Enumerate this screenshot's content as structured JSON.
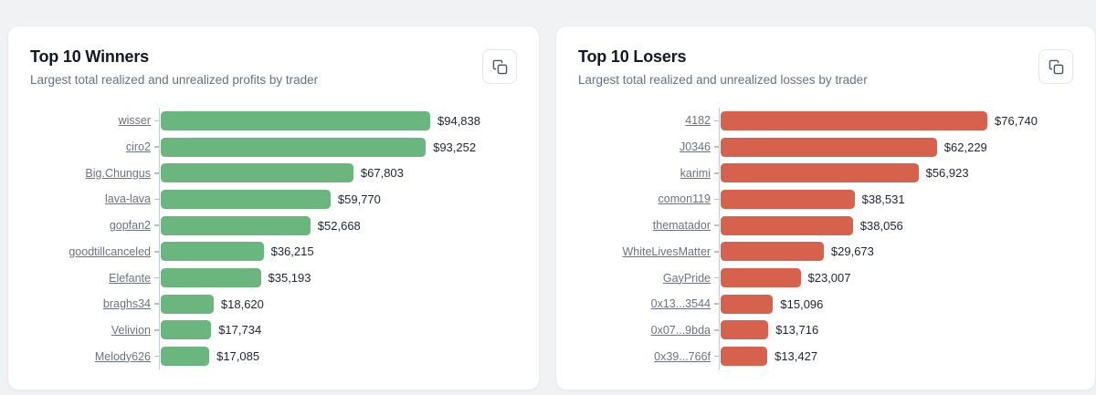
{
  "page": {
    "background_color": "#f1f2f4"
  },
  "cards": [
    {
      "title": "Top 10 Winners",
      "subtitle": "Largest total realized and unrealized profits by trader",
      "copy_icon": "copy-icon"
    },
    {
      "title": "Top 10 Losers",
      "subtitle": "Largest total realized and unrealized losses by trader",
      "copy_icon": "copy-icon"
    }
  ],
  "chart_data": [
    {
      "type": "bar",
      "orientation": "horizontal",
      "title": "Top 10 Winners",
      "subtitle": "Largest total realized and unrealized profits by trader",
      "categories": [
        "wisser",
        "ciro2",
        "Big.Chungus",
        "lava-lava",
        "gopfan2",
        "goodtillcanceled",
        "Elefante",
        "braghs34",
        "Velivion",
        "Melody626"
      ],
      "values": [
        94838,
        93252,
        67803,
        59770,
        52668,
        36215,
        35193,
        18620,
        17734,
        17085
      ],
      "value_labels": [
        "$94,838",
        "$93,252",
        "$67,803",
        "$59,770",
        "$52,668",
        "$36,215",
        "$35,193",
        "$18,620",
        "$17,734",
        "$17,085"
      ],
      "bar_color": "#6ab67e",
      "xlim": [
        0,
        94838
      ],
      "grid": false,
      "legend": "none"
    },
    {
      "type": "bar",
      "orientation": "horizontal",
      "title": "Top 10 Losers",
      "subtitle": "Largest total realized and unrealized losses by trader",
      "categories": [
        "4182",
        "J0346",
        "karimi",
        "comon119",
        "thematador",
        "WhiteLivesMatter",
        "GayPride",
        "0x13...3544",
        "0x07...9bda",
        "0x39...766f"
      ],
      "values": [
        76740,
        62229,
        56923,
        38531,
        38056,
        29673,
        23007,
        15096,
        13716,
        13427
      ],
      "value_labels": [
        "$76,740",
        "$62,229",
        "$56,923",
        "$38,531",
        "$38,056",
        "$29,673",
        "$23,007",
        "$15,096",
        "$13,716",
        "$13,427"
      ],
      "bar_color": "#d6624d",
      "xlim": [
        0,
        76740
      ],
      "grid": false,
      "legend": "none"
    }
  ]
}
